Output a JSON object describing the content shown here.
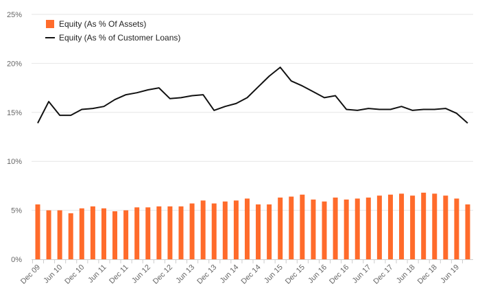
{
  "chart_data": {
    "type": "bar+line",
    "title": "",
    "xlabel": "",
    "ylabel": "",
    "ylim": [
      0,
      25
    ],
    "yticks": [
      "0%",
      "5%",
      "10%",
      "15%",
      "20%",
      "25%"
    ],
    "grid": true,
    "legend_position": "top-left",
    "x_tick_labels": [
      "Dec 09",
      "Jun 10",
      "Dec 10",
      "Jun 11",
      "Dec 11",
      "Jun 12",
      "Dec 12",
      "Jun 13",
      "Dec 13",
      "Jun 14",
      "Dec 14",
      "Jun 15",
      "Dec 15",
      "Jun 16",
      "Dec 16",
      "Jun 17",
      "Dec 17",
      "Jun 18",
      "Dec 18",
      "Jun 19"
    ],
    "series": [
      {
        "name": "Equity (As % Of Assets)",
        "kind": "bar",
        "color": "#ff6b2b",
        "values": [
          5.6,
          5.0,
          5.0,
          4.7,
          5.2,
          5.4,
          5.2,
          4.9,
          5.0,
          5.3,
          5.3,
          5.4,
          5.4,
          5.4,
          5.7,
          6.0,
          5.7,
          5.9,
          6.0,
          6.2,
          5.6,
          5.6,
          6.3,
          6.4,
          6.6,
          6.1,
          5.9,
          6.3,
          6.1,
          6.2,
          6.3,
          6.5,
          6.6,
          6.7,
          6.5,
          6.8,
          6.7,
          6.5,
          6.2,
          5.6
        ]
      },
      {
        "name": "Equity (As % of Customer Loans)",
        "kind": "line",
        "color": "#111111",
        "values": [
          13.9,
          16.1,
          14.7,
          14.7,
          15.3,
          15.4,
          15.6,
          16.3,
          16.8,
          17.0,
          17.3,
          17.5,
          16.4,
          16.5,
          16.7,
          16.8,
          15.2,
          15.6,
          15.9,
          16.5,
          17.6,
          18.7,
          19.6,
          18.2,
          17.7,
          17.1,
          16.5,
          16.7,
          15.3,
          15.2,
          15.4,
          15.3,
          15.3,
          15.6,
          15.2,
          15.3,
          15.3,
          15.4,
          14.9,
          13.9
        ]
      }
    ]
  }
}
